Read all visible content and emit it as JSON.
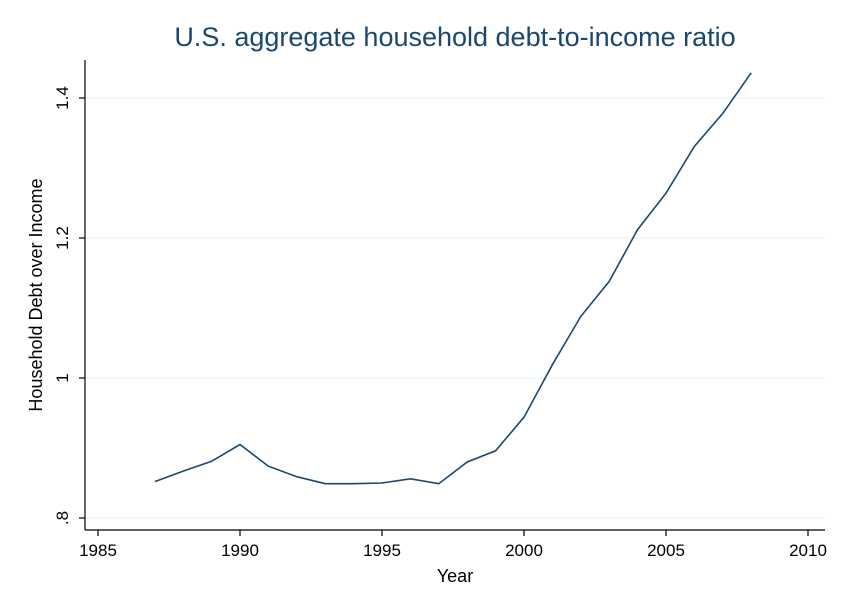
{
  "chart_data": {
    "type": "line",
    "title": "U.S. aggregate household debt-to-income ratio",
    "xlabel": "Year",
    "ylabel": "Household Debt over Income",
    "xlim": [
      1985,
      2010
    ],
    "ylim": [
      0.8,
      1.45
    ],
    "xticks": [
      "1985",
      "1990",
      "1995",
      "2000",
      "2005",
      "2010"
    ],
    "yticks": [
      ".8",
      "1",
      "1.2",
      "1.4"
    ],
    "grid": true,
    "colors": {
      "line": "#1a476f",
      "title": "#1a476f",
      "grid": "#eaf2f3"
    },
    "x": [
      1987,
      1988,
      1989,
      1990,
      1991,
      1992,
      1993,
      1994,
      1995,
      1996,
      1997,
      1998,
      1999,
      2000,
      2001,
      2002,
      2003,
      2004,
      2005,
      2006,
      2007,
      2008
    ],
    "series": [
      {
        "values": [
          0.852,
          0.867,
          0.881,
          0.905,
          0.874,
          0.859,
          0.849,
          0.849,
          0.85,
          0.856,
          0.849,
          0.88,
          0.896,
          0.944,
          1.019,
          1.088,
          1.138,
          1.212,
          1.264,
          1.331,
          1.378,
          1.436
        ]
      }
    ]
  }
}
